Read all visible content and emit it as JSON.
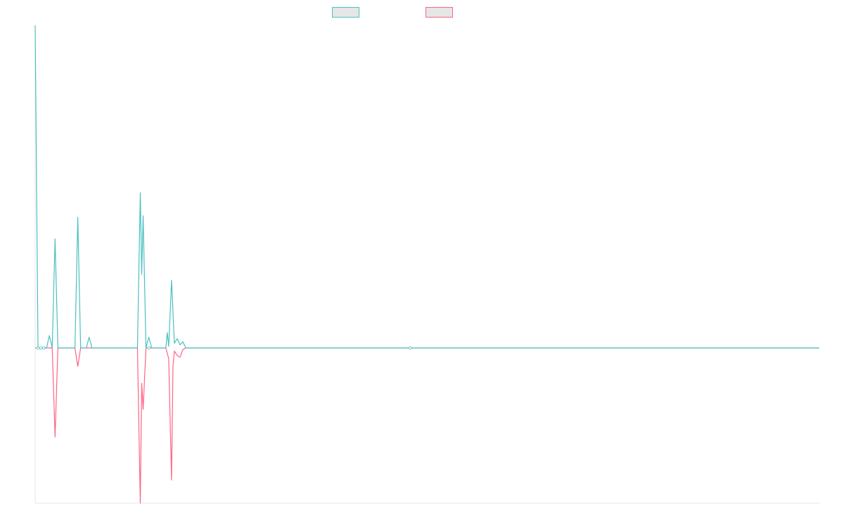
{
  "chart_data": {
    "type": "line",
    "title": "",
    "xlabel": "",
    "ylabel": "",
    "grid": false,
    "legend_position": "top-center",
    "x_range": [
      0,
      276
    ],
    "y_range": [
      -101,
      210
    ],
    "series": [
      {
        "color": "#4bc0c0",
        "fill": "#e6e6e6",
        "points": [
          [
            0,
            210
          ],
          [
            1,
            0
          ],
          [
            2,
            0
          ],
          [
            3,
            0
          ],
          [
            4,
            0
          ],
          [
            5,
            8
          ],
          [
            6,
            0
          ],
          [
            7,
            71
          ],
          [
            8,
            0
          ],
          [
            14,
            0
          ],
          [
            15,
            85
          ],
          [
            16,
            0
          ],
          [
            18,
            0
          ],
          [
            19,
            7
          ],
          [
            20,
            0
          ],
          [
            36,
            0
          ],
          [
            37,
            101
          ],
          [
            37.5,
            48
          ],
          [
            38,
            86
          ],
          [
            39,
            0
          ],
          [
            40,
            7
          ],
          [
            41,
            0
          ],
          [
            46,
            0
          ],
          [
            46.5,
            10
          ],
          [
            47,
            1
          ],
          [
            48,
            44
          ],
          [
            49,
            3
          ],
          [
            50,
            6
          ],
          [
            51,
            2
          ],
          [
            52,
            4
          ],
          [
            53,
            0
          ],
          [
            132,
            0
          ],
          [
            276,
            0
          ]
        ],
        "markers": [
          [
            1,
            0
          ],
          [
            2,
            0
          ],
          [
            3,
            0
          ],
          [
            40,
            0
          ],
          [
            132,
            0
          ]
        ]
      },
      {
        "color": "#ff6384",
        "fill": "#e6e6e6",
        "points": [
          [
            0,
            0
          ],
          [
            6,
            0
          ],
          [
            7,
            -58
          ],
          [
            8,
            0
          ],
          [
            14,
            0
          ],
          [
            15,
            -12
          ],
          [
            16,
            0
          ],
          [
            36,
            0
          ],
          [
            37,
            -101
          ],
          [
            37.5,
            -23
          ],
          [
            38,
            -40
          ],
          [
            39,
            0
          ],
          [
            46,
            0
          ],
          [
            47,
            -7
          ],
          [
            48,
            -86
          ],
          [
            48.5,
            -12
          ],
          [
            49,
            -2
          ],
          [
            50,
            -5
          ],
          [
            51,
            -6
          ],
          [
            52,
            -1
          ],
          [
            53,
            0
          ],
          [
            276,
            0
          ]
        ],
        "markers": []
      }
    ]
  }
}
